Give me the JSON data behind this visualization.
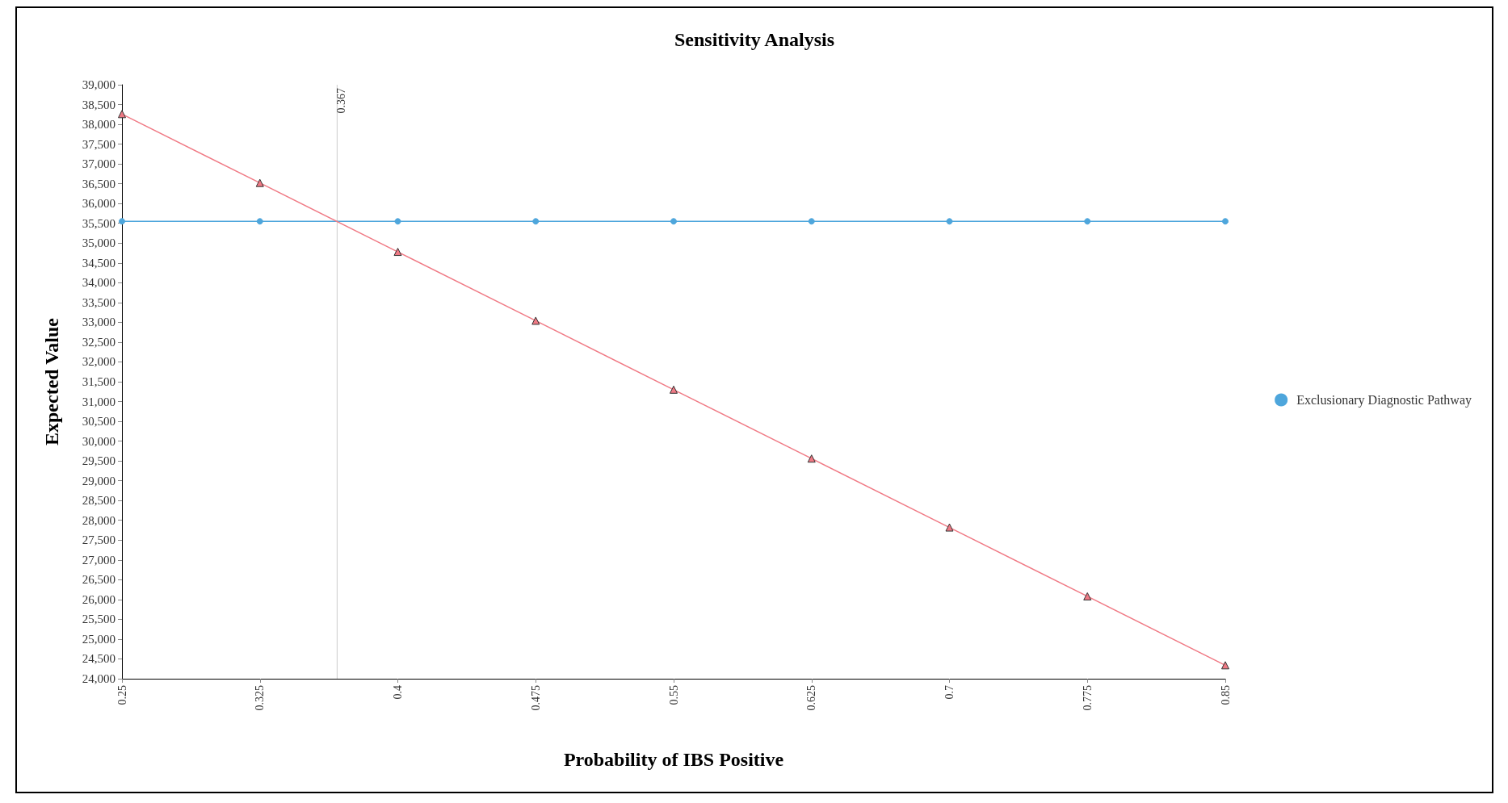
{
  "chart_data": {
    "type": "line",
    "title": "Sensitivity Analysis",
    "xlabel": "Probability of IBS Positive",
    "ylabel": "Expected Value",
    "x": [
      0.25,
      0.325,
      0.4,
      0.475,
      0.55,
      0.625,
      0.7,
      0.775,
      0.85
    ],
    "series": [
      {
        "name": "Exclusionary Diagnostic Pathway",
        "color": "#4ea6dc",
        "marker": "circle",
        "values": [
          35550,
          35550,
          35550,
          35550,
          35550,
          35550,
          35550,
          35550,
          35550
        ]
      },
      {
        "color": "#f07a85",
        "marker": "triangle",
        "values": [
          38260,
          36520,
          34780,
          33040,
          31300,
          29560,
          27820,
          26080,
          24340
        ]
      }
    ],
    "xlim": [
      0.25,
      0.85
    ],
    "xticks": [
      0.25,
      0.325,
      0.4,
      0.475,
      0.55,
      0.625,
      0.7,
      0.775,
      0.85
    ],
    "ylim": [
      24000,
      39000
    ],
    "yticks": [
      {
        "value": 24000,
        "label": "24,000"
      },
      {
        "value": 24500,
        "label": "24,500"
      },
      {
        "value": 25000,
        "label": "25,000"
      },
      {
        "value": 25500,
        "label": "25,500"
      },
      {
        "value": 26000,
        "label": "26,000"
      },
      {
        "value": 26500,
        "label": "26,500"
      },
      {
        "value": 27000,
        "label": "27,000"
      },
      {
        "value": 27500,
        "label": "27,500"
      },
      {
        "value": 28000,
        "label": "28,000"
      },
      {
        "value": 28500,
        "label": "28,500"
      },
      {
        "value": 29000,
        "label": "29,000"
      },
      {
        "value": 29500,
        "label": "29,500"
      },
      {
        "value": 30000,
        "label": "30,000"
      },
      {
        "value": 30500,
        "label": "30,500"
      },
      {
        "value": 31000,
        "label": "31,000"
      },
      {
        "value": 31500,
        "label": "31,500"
      },
      {
        "value": 32000,
        "label": "32,000"
      },
      {
        "value": 32500,
        "label": "32,500"
      },
      {
        "value": 33000,
        "label": "33,000"
      },
      {
        "value": 33500,
        "label": "33,500"
      },
      {
        "value": 34000,
        "label": "34,000"
      },
      {
        "value": 34500,
        "label": "34,500"
      },
      {
        "value": 35000,
        "label": "35,000"
      },
      {
        "value": 35500,
        "label": "35,500"
      },
      {
        "value": 36000,
        "label": "36,000"
      },
      {
        "value": 36500,
        "label": "36,500"
      },
      {
        "value": 37000,
        "label": "37,000"
      },
      {
        "value": 37500,
        "label": "37,500"
      },
      {
        "value": 38000,
        "label": "38,000"
      },
      {
        "value": 38500,
        "label": "38,500"
      },
      {
        "value": 39000,
        "label": "39,000"
      }
    ],
    "ref_lines": [
      {
        "axis": "x",
        "value": 0.367,
        "label": "0.367",
        "color": "#cccccc"
      }
    ],
    "legend": "right",
    "grid": false
  }
}
